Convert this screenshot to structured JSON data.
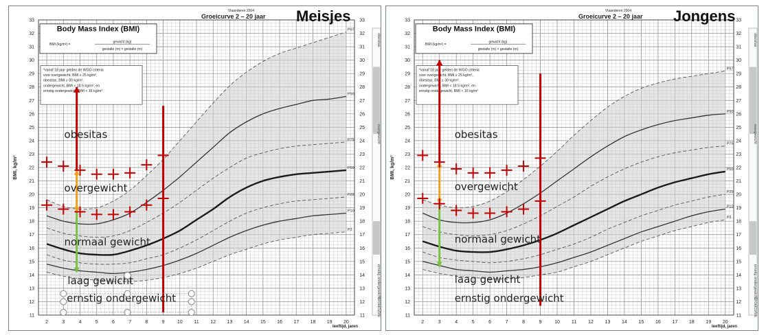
{
  "chart_data": [
    {
      "type": "line",
      "panel": "girls",
      "title": "Body Mass Index (BMI)",
      "subtitle": "Groeicurve 2 – 20 jaar",
      "source": "Vlaanderen 2004",
      "heading": "Meisjes",
      "formula": {
        "lhs": "BMI (kg/m²) =",
        "num": "gewicht (kg)",
        "den": "gestalte (m) × gestalte (m)"
      },
      "note": [
        "*vanaf 18 jaar gelden de WGO criteria",
        "voor overgewicht, BMI ≥ 25 kg/m²,",
        "obesitas, BMI ≥ 30 kg/m²,",
        "ondergewicht, BMI < 18.5 kg/m², en",
        "ernstig ondergewicht, BMI < 16 kg/m²"
      ],
      "xlabel": "leeftijd, jaren",
      "ylabel": "BMI, kg/m²",
      "xlim": [
        1.5,
        20.5
      ],
      "ylim": [
        11,
        33
      ],
      "x_ticks": [
        2,
        3,
        4,
        5,
        6,
        7,
        8,
        9,
        10,
        11,
        12,
        13,
        14,
        15,
        16,
        17,
        18,
        19,
        20
      ],
      "y_ticks": [
        11,
        12,
        13,
        14,
        15,
        16,
        17,
        18,
        19,
        20,
        21,
        22,
        23,
        24,
        25,
        26,
        27,
        28,
        29,
        30,
        31,
        32,
        33
      ],
      "side_labels": [
        "obesitas",
        "overgewicht",
        "ernstig ondergewicht"
      ],
      "side_footer": "Groeicurve",
      "series": [
        {
          "name": "P97",
          "style": "dashed",
          "x": [
            2,
            3,
            4,
            5,
            6,
            7,
            8,
            9,
            10,
            11,
            12,
            13,
            14,
            15,
            16,
            17,
            18,
            19,
            20
          ],
          "y": [
            19.6,
            19.1,
            18.9,
            19.0,
            19.5,
            20.3,
            21.4,
            22.6,
            24.0,
            25.4,
            26.8,
            28.1,
            29.1,
            29.9,
            30.5,
            30.9,
            31.3,
            31.7,
            32.1
          ]
        },
        {
          "name": "P90",
          "style": "solid",
          "x": [
            2,
            3,
            4,
            5,
            6,
            7,
            8,
            9,
            10,
            11,
            12,
            13,
            14,
            15,
            16,
            17,
            18,
            19,
            20
          ],
          "y": [
            18.4,
            18.0,
            17.8,
            17.8,
            18.1,
            18.6,
            19.4,
            20.3,
            21.3,
            22.4,
            23.5,
            24.6,
            25.4,
            26.0,
            26.4,
            26.7,
            27.0,
            27.1,
            27.3
          ]
        },
        {
          "name": "P75",
          "style": "dashed",
          "x": [
            2,
            3,
            4,
            5,
            6,
            7,
            8,
            9,
            10,
            11,
            12,
            13,
            14,
            15,
            16,
            17,
            18,
            19,
            20
          ],
          "y": [
            17.5,
            17.1,
            16.9,
            16.8,
            16.9,
            17.3,
            17.9,
            18.6,
            19.4,
            20.3,
            21.2,
            22.0,
            22.7,
            23.1,
            23.4,
            23.6,
            23.7,
            23.8,
            23.9
          ]
        },
        {
          "name": "P50",
          "style": "bold",
          "x": [
            2,
            3,
            4,
            5,
            6,
            7,
            8,
            9,
            10,
            11,
            12,
            13,
            14,
            15,
            16,
            17,
            18,
            19,
            20
          ],
          "y": [
            16.3,
            15.9,
            15.6,
            15.5,
            15.5,
            15.8,
            16.2,
            16.7,
            17.3,
            18.1,
            18.9,
            19.8,
            20.5,
            21.0,
            21.3,
            21.5,
            21.6,
            21.7,
            21.8
          ]
        },
        {
          "name": "P25",
          "style": "dashed",
          "x": [
            2,
            3,
            4,
            5,
            6,
            7,
            8,
            9,
            10,
            11,
            12,
            13,
            14,
            15,
            16,
            17,
            18,
            19,
            20
          ],
          "y": [
            15.5,
            15.1,
            14.9,
            14.8,
            14.8,
            14.9,
            15.2,
            15.5,
            16.0,
            16.6,
            17.3,
            18.0,
            18.6,
            19.0,
            19.3,
            19.5,
            19.6,
            19.7,
            19.8
          ]
        },
        {
          "name": "P10",
          "style": "solid",
          "x": [
            2,
            3,
            4,
            5,
            6,
            7,
            8,
            9,
            10,
            11,
            12,
            13,
            14,
            15,
            16,
            17,
            18,
            19,
            20
          ],
          "y": [
            14.8,
            14.5,
            14.3,
            14.2,
            14.1,
            14.2,
            14.4,
            14.7,
            15.1,
            15.6,
            16.2,
            16.8,
            17.3,
            17.7,
            18.0,
            18.2,
            18.4,
            18.5,
            18.6
          ]
        },
        {
          "name": "P3",
          "style": "dashed",
          "x": [
            2,
            3,
            4,
            5,
            6,
            7,
            8,
            9,
            10,
            11,
            12,
            13,
            14,
            15,
            16,
            17,
            18,
            19,
            20
          ],
          "y": [
            14.2,
            13.9,
            13.7,
            13.6,
            13.5,
            13.5,
            13.6,
            13.8,
            14.1,
            14.5,
            15.0,
            15.5,
            15.9,
            16.3,
            16.6,
            16.8,
            17.0,
            17.1,
            17.2
          ]
        }
      ],
      "band_lower": "P3",
      "band_upper": "P97",
      "annotations": {
        "labels": [
          {
            "text": "obesitas",
            "x": 3.05,
            "y": 24.2
          },
          {
            "text": "overgewicht",
            "x": 3.05,
            "y": 20.2
          },
          {
            "text": "normaal gewicht",
            "x": 3.05,
            "y": 16.2
          },
          {
            "text": "laag gewicht",
            "x": 3.25,
            "y": 13.3
          },
          {
            "text": "ernstig ondergewicht",
            "x": 3.2,
            "y": 12.0
          }
        ],
        "crosses_upper": [
          {
            "x": 2,
            "y": 22.4
          },
          {
            "x": 3,
            "y": 22.1
          },
          {
            "x": 4,
            "y": 21.8
          },
          {
            "x": 5,
            "y": 21.5
          },
          {
            "x": 6,
            "y": 21.5
          },
          {
            "x": 7,
            "y": 21.6
          },
          {
            "x": 8,
            "y": 22.2
          },
          {
            "x": 9,
            "y": 22.9
          }
        ],
        "crosses_lower": [
          {
            "x": 2,
            "y": 19.2
          },
          {
            "x": 3,
            "y": 18.9
          },
          {
            "x": 4,
            "y": 18.7
          },
          {
            "x": 5,
            "y": 18.5
          },
          {
            "x": 6,
            "y": 18.5
          },
          {
            "x": 7,
            "y": 18.7
          },
          {
            "x": 8,
            "y": 19.2
          },
          {
            "x": 9,
            "y": 19.7
          }
        ],
        "vlines": [
          {
            "x": 3.8,
            "y1": 28.0,
            "y2": 21.8,
            "color": "#c00000"
          },
          {
            "x": 3.8,
            "y1": 21.8,
            "y2": 18.7,
            "color": "#f0a020"
          },
          {
            "x": 3.8,
            "y1": 18.7,
            "y2": 14.2,
            "color": "#7ac043"
          },
          {
            "x": 9,
            "y1": 26.6,
            "y2": 11.2,
            "color": "#c00000"
          }
        ],
        "handles": [
          {
            "x": 3.0,
            "y": 12.6
          },
          {
            "x": 6.85,
            "y": 12.6
          },
          {
            "x": 10.7,
            "y": 12.6
          },
          {
            "x": 3.0,
            "y": 12.0
          },
          {
            "x": 10.7,
            "y": 12.0
          },
          {
            "x": 3.0,
            "y": 11.2
          },
          {
            "x": 6.85,
            "y": 11.2
          },
          {
            "x": 10.7,
            "y": 11.2
          }
        ]
      },
      "colors": {
        "band": "#cfcfcf",
        "grid": "#b8b8b8",
        "text": "#222222",
        "red": "#c00000",
        "orange": "#f0a020",
        "green": "#7ac043"
      }
    },
    {
      "type": "line",
      "panel": "boys",
      "title": "Body Mass Index (BMI)",
      "subtitle": "Groeicurve 2 – 20 jaar",
      "source": "Vlaanderen 2004",
      "heading": "Jongens",
      "formula": {
        "lhs": "BMI (kg/m²) =",
        "num": "gewicht (kg)",
        "den": "gestalte (m) × gestalte (m)"
      },
      "note": [
        "*vanaf 18 jaar gelden de WGO criteria",
        "voor overgewicht, BMI ≥ 25 kg/m²,",
        "obesitas, BMI ≥ 30 kg/m²,",
        "ondergewicht, BMI < 18.5 kg/m², en",
        "ernstig ondergewicht, BMI < 16 kg/m²"
      ],
      "xlabel": "leeftijd, jaren",
      "ylabel": "BMI, kg/m²",
      "xlim": [
        1.5,
        20.5
      ],
      "ylim": [
        11,
        33
      ],
      "x_ticks": [
        2,
        3,
        4,
        5,
        6,
        7,
        8,
        9,
        10,
        11,
        12,
        13,
        14,
        15,
        16,
        17,
        18,
        19,
        20
      ],
      "y_ticks": [
        11,
        12,
        13,
        14,
        15,
        16,
        17,
        18,
        19,
        20,
        21,
        22,
        23,
        24,
        25,
        26,
        27,
        28,
        29,
        30,
        31,
        32,
        33
      ],
      "side_labels": [
        "obesitas",
        "overgewicht",
        "ernstig ondergewicht"
      ],
      "side_footer": "Groeicurve",
      "series": [
        {
          "name": "P97",
          "style": "dashed",
          "x": [
            2,
            3,
            4,
            5,
            6,
            7,
            8,
            9,
            10,
            11,
            12,
            13,
            14,
            15,
            16,
            17,
            18,
            19,
            20
          ],
          "y": [
            19.6,
            19.2,
            19.0,
            19.1,
            19.5,
            20.2,
            21.1,
            22.1,
            23.2,
            24.4,
            25.5,
            26.5,
            27.3,
            27.9,
            28.3,
            28.6,
            28.8,
            29.0,
            29.2
          ]
        },
        {
          "name": "P90",
          "style": "solid",
          "x": [
            2,
            3,
            4,
            5,
            6,
            7,
            8,
            9,
            10,
            11,
            12,
            13,
            14,
            15,
            16,
            17,
            18,
            19,
            20
          ],
          "y": [
            18.6,
            18.1,
            17.9,
            17.9,
            18.1,
            18.6,
            19.3,
            20.1,
            21.0,
            21.9,
            22.8,
            23.6,
            24.3,
            24.8,
            25.2,
            25.5,
            25.7,
            25.9,
            26.0
          ]
        },
        {
          "name": "P75",
          "style": "dashed",
          "x": [
            2,
            3,
            4,
            5,
            6,
            7,
            8,
            9,
            10,
            11,
            12,
            13,
            14,
            15,
            16,
            17,
            18,
            19,
            20
          ],
          "y": [
            17.6,
            17.2,
            17.0,
            16.9,
            17.0,
            17.3,
            17.8,
            18.4,
            19.1,
            19.8,
            20.6,
            21.3,
            21.9,
            22.4,
            22.8,
            23.1,
            23.3,
            23.5,
            23.6
          ]
        },
        {
          "name": "P50",
          "style": "bold",
          "x": [
            2,
            3,
            4,
            5,
            6,
            7,
            8,
            9,
            10,
            11,
            12,
            13,
            14,
            15,
            16,
            17,
            18,
            19,
            20
          ],
          "y": [
            16.5,
            16.1,
            15.8,
            15.7,
            15.7,
            15.9,
            16.2,
            16.6,
            17.1,
            17.7,
            18.3,
            18.9,
            19.5,
            20.0,
            20.5,
            20.9,
            21.2,
            21.5,
            21.7
          ]
        },
        {
          "name": "P25",
          "style": "dashed",
          "x": [
            2,
            3,
            4,
            5,
            6,
            7,
            8,
            9,
            10,
            11,
            12,
            13,
            14,
            15,
            16,
            17,
            18,
            19,
            20
          ],
          "y": [
            15.7,
            15.3,
            15.1,
            15.0,
            14.9,
            15.0,
            15.2,
            15.5,
            15.9,
            16.3,
            16.8,
            17.4,
            17.9,
            18.4,
            18.8,
            19.2,
            19.5,
            19.8,
            20.0
          ]
        },
        {
          "name": "P10",
          "style": "solid",
          "x": [
            2,
            3,
            4,
            5,
            6,
            7,
            8,
            9,
            10,
            11,
            12,
            13,
            14,
            15,
            16,
            17,
            18,
            19,
            20
          ],
          "y": [
            15.0,
            14.7,
            14.4,
            14.3,
            14.2,
            14.3,
            14.4,
            14.6,
            14.9,
            15.3,
            15.7,
            16.2,
            16.7,
            17.2,
            17.6,
            18.0,
            18.4,
            18.7,
            18.9
          ]
        },
        {
          "name": "P3",
          "style": "dashed",
          "x": [
            2,
            3,
            4,
            5,
            6,
            7,
            8,
            9,
            10,
            11,
            12,
            13,
            14,
            15,
            16,
            17,
            18,
            19,
            20
          ],
          "y": [
            14.4,
            14.1,
            13.9,
            13.8,
            13.7,
            13.7,
            13.8,
            14.0,
            14.2,
            14.6,
            15.0,
            15.5,
            16.0,
            16.5,
            16.9,
            17.3,
            17.6,
            17.9,
            18.1
          ]
        }
      ],
      "band_lower": "P3",
      "band_upper": "P97",
      "annotations": {
        "labels": [
          {
            "text": "obesitas",
            "x": 3.9,
            "y": 24.2
          },
          {
            "text": "overgewicht",
            "x": 3.9,
            "y": 20.3
          },
          {
            "text": "normaal gewicht",
            "x": 3.9,
            "y": 16.4
          },
          {
            "text": "laag gewicht",
            "x": 3.9,
            "y": 13.4
          },
          {
            "text": "ernstig ondergewicht",
            "x": 3.9,
            "y": 12.0
          }
        ],
        "crosses_upper": [
          {
            "x": 2,
            "y": 22.9
          },
          {
            "x": 3,
            "y": 22.4
          },
          {
            "x": 4,
            "y": 21.9
          },
          {
            "x": 5,
            "y": 21.6
          },
          {
            "x": 6,
            "y": 21.6
          },
          {
            "x": 7,
            "y": 21.8
          },
          {
            "x": 8,
            "y": 22.1
          },
          {
            "x": 9,
            "y": 22.7
          }
        ],
        "crosses_lower": [
          {
            "x": 2,
            "y": 19.7
          },
          {
            "x": 3,
            "y": 19.3
          },
          {
            "x": 4,
            "y": 18.8
          },
          {
            "x": 5,
            "y": 18.6
          },
          {
            "x": 6,
            "y": 18.6
          },
          {
            "x": 7,
            "y": 18.7
          },
          {
            "x": 8,
            "y": 18.9
          },
          {
            "x": 9,
            "y": 19.5
          }
        ],
        "vlines": [
          {
            "x": 3.0,
            "y1": 30.0,
            "y2": 22.4,
            "color": "#c00000"
          },
          {
            "x": 3.0,
            "y1": 22.4,
            "y2": 19.3,
            "color": "#f0a020"
          },
          {
            "x": 3.0,
            "y1": 19.3,
            "y2": 14.6,
            "color": "#7ac043"
          },
          {
            "x": 9,
            "y1": 29.0,
            "y2": 11.7,
            "color": "#c00000"
          }
        ],
        "handles": []
      },
      "colors": {
        "band": "#cfcfcf",
        "grid": "#b8b8b8",
        "text": "#222222",
        "red": "#c00000",
        "orange": "#f0a020",
        "green": "#7ac043"
      }
    }
  ]
}
